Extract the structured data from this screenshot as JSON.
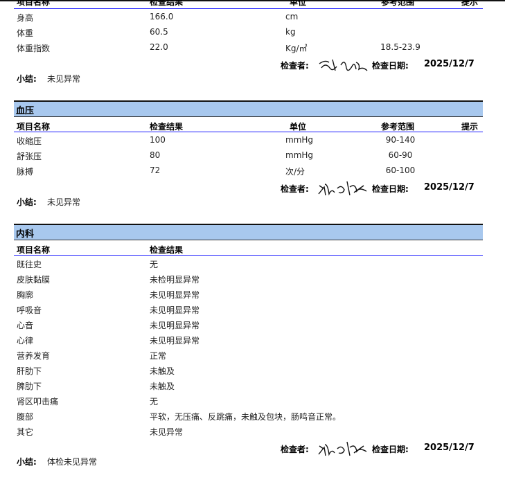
{
  "headers": {
    "name": "项目名称",
    "result": "检查结果",
    "unit": "单位",
    "range": "参考范围",
    "hint": "提示"
  },
  "labels": {
    "checker": "检查者:",
    "check_date": "检查日期:",
    "summary": "小结:"
  },
  "sections": [
    {
      "title": "",
      "rows": [
        {
          "name": "身高",
          "result": "166.0",
          "unit": "cm",
          "range": ""
        },
        {
          "name": "体重",
          "result": "60.5",
          "unit": "kg",
          "range": ""
        },
        {
          "name": "体重指数",
          "result": "22.0",
          "unit": "Kg/㎡",
          "range": "18.5-23.9"
        }
      ],
      "date": "2025/12/7",
      "summary": "未见异常"
    },
    {
      "title": "血压",
      "rows": [
        {
          "name": "收缩压",
          "result": "100",
          "unit": "mmHg",
          "range": "90-140"
        },
        {
          "name": "舒张压",
          "result": "80",
          "unit": "mmHg",
          "range": "60-90"
        },
        {
          "name": "脉搏",
          "result": "72",
          "unit": "次/分",
          "range": "60-100"
        }
      ],
      "date": "2025/12/7",
      "summary": "未见异常"
    },
    {
      "title": "内科",
      "rows": [
        {
          "name": "既往史",
          "result": "无"
        },
        {
          "name": "皮肤黏膜",
          "result": "未检明显异常"
        },
        {
          "name": "胸廓",
          "result": "未见明显异常"
        },
        {
          "name": "呼吸音",
          "result": "未见明显异常"
        },
        {
          "name": "心音",
          "result": "未见明显异常"
        },
        {
          "name": "心律",
          "result": "未见明显异常"
        },
        {
          "name": "营养发育",
          "result": "正常"
        },
        {
          "name": "肝肋下",
          "result": "未触及"
        },
        {
          "name": "脾肋下",
          "result": "未触及"
        },
        {
          "name": "肾区叩击痛",
          "result": "无"
        },
        {
          "name": "腹部",
          "result": "平软，无压痛、反跳痛，未触及包块，肠鸣音正常。"
        },
        {
          "name": "其它",
          "result": "未见异常"
        }
      ],
      "date": "2025/12/7",
      "summary": "体检未见异常"
    }
  ]
}
